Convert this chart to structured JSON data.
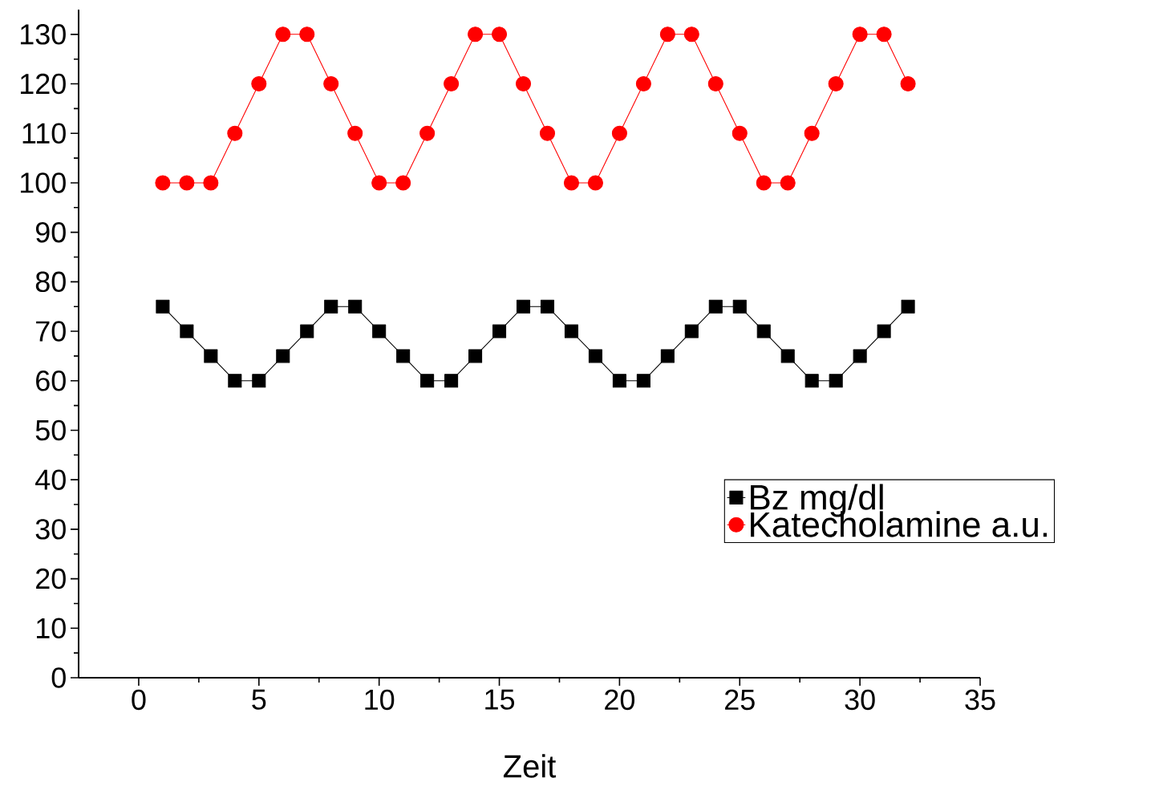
{
  "chart_data": {
    "type": "line",
    "xlabel": "Zeit",
    "x": [
      1,
      2,
      3,
      4,
      5,
      6,
      7,
      8,
      9,
      10,
      11,
      12,
      13,
      14,
      15,
      16,
      17,
      18,
      19,
      20,
      21,
      22,
      23,
      24,
      25,
      26,
      27,
      28,
      29,
      30,
      31,
      32
    ],
    "series": [
      {
        "name": "Bz mg/dl",
        "color": "#000000",
        "marker": "square",
        "values": [
          75,
          70,
          65,
          60,
          60,
          65,
          70,
          75,
          75,
          70,
          65,
          60,
          60,
          65,
          70,
          75,
          75,
          70,
          65,
          60,
          60,
          65,
          70,
          75,
          75,
          70,
          65,
          60,
          60,
          65,
          70,
          75
        ]
      },
      {
        "name": "Katecholamine a.u.",
        "color": "#ff0000",
        "marker": "circle",
        "values": [
          100,
          100,
          100,
          110,
          120,
          130,
          130,
          120,
          110,
          100,
          100,
          110,
          120,
          130,
          130,
          120,
          110,
          100,
          100,
          110,
          120,
          130,
          130,
          120,
          110,
          100,
          100,
          110,
          120,
          130,
          130,
          120
        ]
      }
    ],
    "xlim": [
      -2.5,
      35
    ],
    "xticks": [
      0,
      5,
      10,
      15,
      20,
      25,
      30,
      35
    ],
    "ylim": [
      0,
      135
    ],
    "yticks": [
      0,
      10,
      20,
      30,
      40,
      50,
      60,
      70,
      80,
      90,
      100,
      110,
      120,
      130
    ],
    "grid": false,
    "legend": "bottom right",
    "line_style": "solid"
  }
}
